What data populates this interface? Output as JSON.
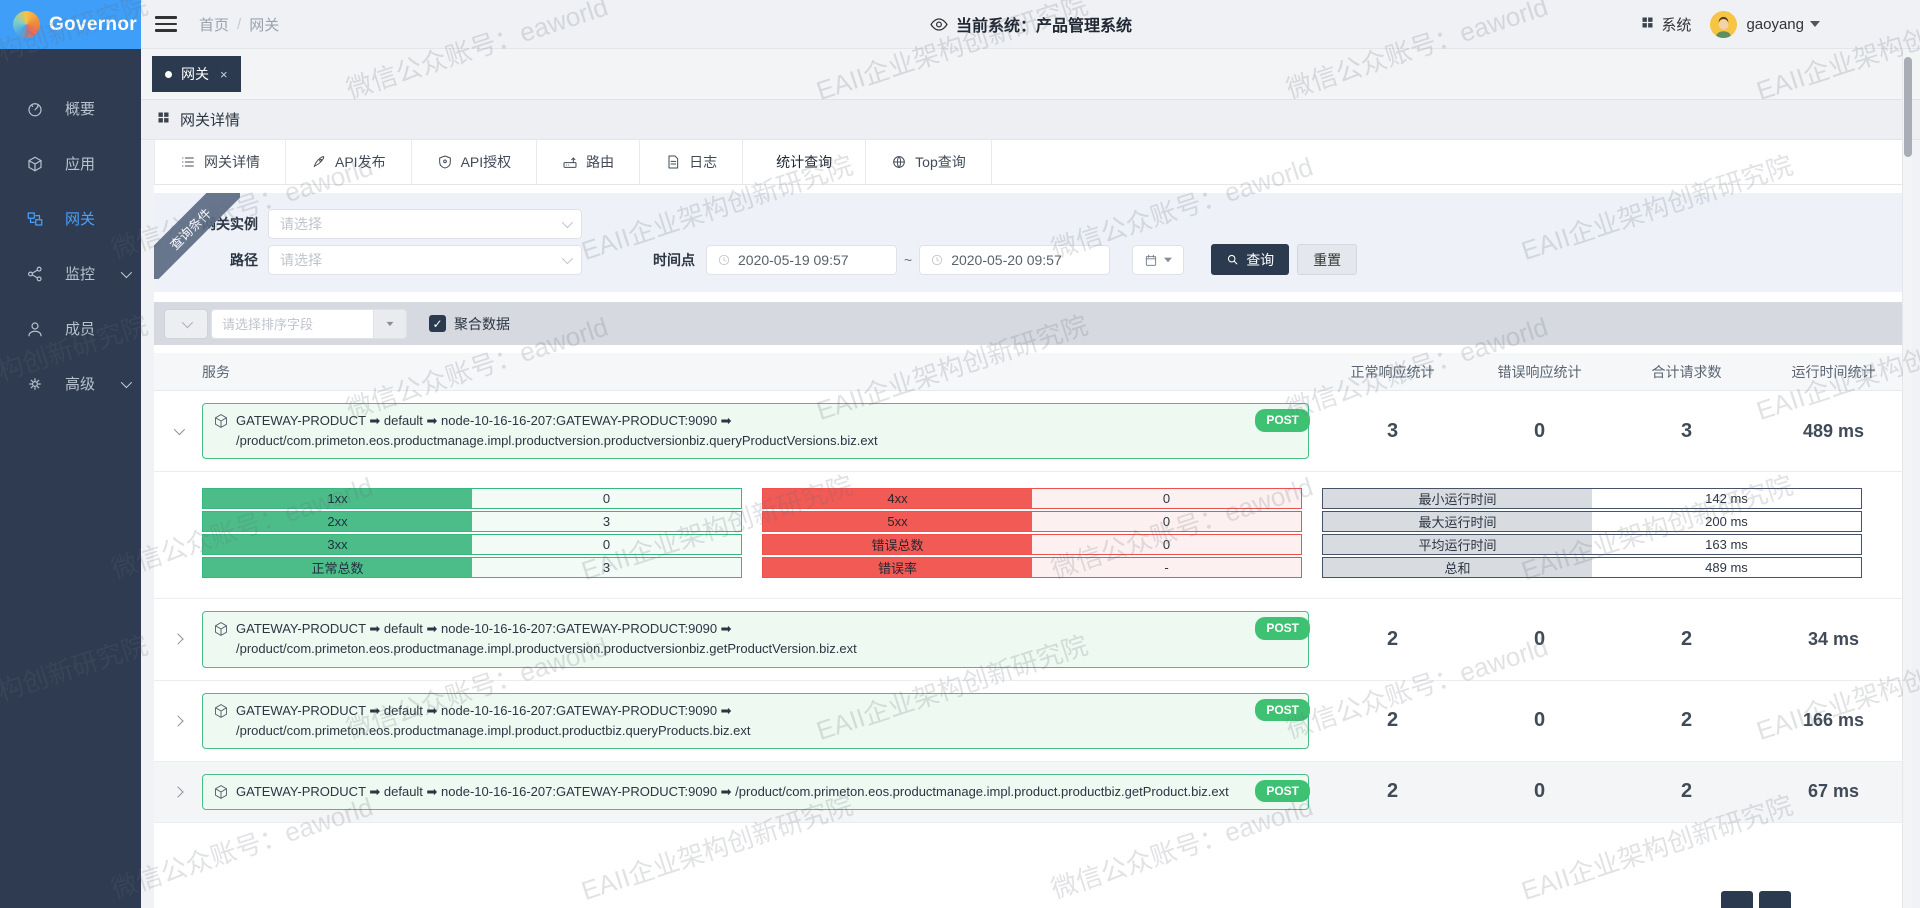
{
  "app": {
    "name": "Governor",
    "breadcrumb": [
      "首页",
      "网关"
    ],
    "current_system": "当前系统：产品管理系统",
    "system_menu": "系统",
    "username": "gaoyang"
  },
  "sidebar": {
    "items": [
      {
        "label": "概要",
        "icon": "gauge-icon",
        "active": false,
        "expandable": false
      },
      {
        "label": "应用",
        "icon": "cube-icon",
        "active": false,
        "expandable": false
      },
      {
        "label": "网关",
        "icon": "gateway-icon",
        "active": true,
        "expandable": false
      },
      {
        "label": "监控",
        "icon": "share-icon",
        "active": false,
        "expandable": true
      },
      {
        "label": "成员",
        "icon": "user-icon",
        "active": false,
        "expandable": false
      },
      {
        "label": "高级",
        "icon": "gear-icon",
        "active": false,
        "expandable": true
      }
    ]
  },
  "tab_chip": {
    "label": "网关",
    "close": "×"
  },
  "section": {
    "title": "网关详情"
  },
  "detail_tabs": [
    {
      "label": "网关详情",
      "icon": "list-icon",
      "active": false
    },
    {
      "label": "API发布",
      "icon": "rocket-icon",
      "active": false
    },
    {
      "label": "API授权",
      "icon": "shield-icon",
      "active": false
    },
    {
      "label": "路由",
      "icon": "router-icon",
      "active": false
    },
    {
      "label": "日志",
      "icon": "log-icon",
      "active": false
    },
    {
      "label": "统计查询",
      "icon": "",
      "active": true
    },
    {
      "label": "Top查询",
      "icon": "globe-icon",
      "active": false
    }
  ],
  "query_form": {
    "ribbon": "查询条件",
    "instance_label": "网关实例",
    "path_label": "路径",
    "select_placeholder": "请选择",
    "time_label": "时间点",
    "time_from": "2020-05-19 09:57",
    "time_to": "2020-05-20 09:57",
    "range_separator": "~",
    "search_btn": "查询",
    "reset_btn": "重置"
  },
  "sort_bar": {
    "placeholder": "请选择排序字段",
    "aggregate_label": "聚合数据",
    "aggregate_checked": true,
    "check_glyph": "✓"
  },
  "table": {
    "headers": [
      "服务",
      "正常响应统计",
      "错误响应统计",
      "合计请求数",
      "运行时间统计"
    ],
    "rows": [
      {
        "expanded": true,
        "method": "POST",
        "service": "GATEWAY-PRODUCT ➡ default ➡ node-10-16-16-207:GATEWAY-PRODUCT:9090 ➡ /product/com.primeton.eos.productmanage.impl.productversion.productversionbiz.queryProductVersions.biz.ext",
        "normal": "3",
        "error": "0",
        "total": "3",
        "time": "489 ms",
        "shaded": false
      },
      {
        "expanded": false,
        "method": "POST",
        "service": "GATEWAY-PRODUCT ➡ default ➡ node-10-16-16-207:GATEWAY-PRODUCT:9090 ➡ /product/com.primeton.eos.productmanage.impl.productversion.productversionbiz.getProductVersion.biz.ext",
        "normal": "2",
        "error": "0",
        "total": "2",
        "time": "34 ms",
        "shaded": false
      },
      {
        "expanded": false,
        "method": "POST",
        "service": "GATEWAY-PRODUCT ➡ default ➡ node-10-16-16-207:GATEWAY-PRODUCT:9090 ➡ /product/com.primeton.eos.productmanage.impl.product.productbiz.queryProducts.biz.ext",
        "normal": "2",
        "error": "0",
        "total": "2",
        "time": "166 ms",
        "shaded": false
      },
      {
        "expanded": false,
        "method": "POST",
        "service": "GATEWAY-PRODUCT ➡ default ➡ node-10-16-16-207:GATEWAY-PRODUCT:9090 ➡ /product/com.primeton.eos.productmanage.impl.product.productbiz.getProduct.biz.ext",
        "normal": "2",
        "error": "0",
        "total": "2",
        "time": "67 ms",
        "shaded": true
      }
    ],
    "expanded_detail": {
      "green": [
        [
          "1xx",
          "0"
        ],
        [
          "2xx",
          "3"
        ],
        [
          "3xx",
          "0"
        ],
        [
          "正常总数",
          "3"
        ]
      ],
      "red": [
        [
          "4xx",
          "0"
        ],
        [
          "5xx",
          "0"
        ],
        [
          "错误总数",
          "0"
        ],
        [
          "错误率",
          "-"
        ]
      ],
      "gray": [
        [
          "最小运行时间",
          "142 ms"
        ],
        [
          "最大运行时间",
          "200 ms"
        ],
        [
          "平均运行时间",
          "163 ms"
        ],
        [
          "总和",
          "489 ms"
        ]
      ]
    }
  },
  "watermark": {
    "texts": [
      "EAII企业架构创新研究院",
      "微信公众账号：eaworld"
    ]
  },
  "colors": {
    "accent_blue": "#3f9ef7",
    "sidebar": "#2e3b50",
    "navy_btn": "#2b3a4e",
    "green": "#47bd87",
    "red": "#f0504e",
    "badge_green": "#3fc173"
  }
}
